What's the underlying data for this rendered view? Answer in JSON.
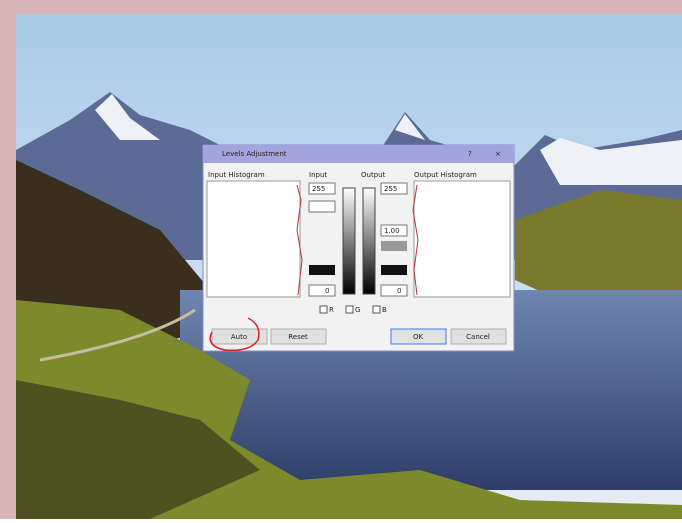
{
  "dialog": {
    "title": "Levels Adjustment",
    "labels": {
      "input_histogram": "Input Histogram",
      "input": "Input",
      "output": "Output",
      "output_histogram": "Output Histogram"
    },
    "input_high": "255",
    "input_low": "0",
    "gamma": "1.00",
    "output_high": "255",
    "output_low": "0",
    "channels": [
      "R",
      "G",
      "B"
    ],
    "buttons": [
      "Auto",
      "Reset",
      "OK",
      "Cancel"
    ]
  }
}
